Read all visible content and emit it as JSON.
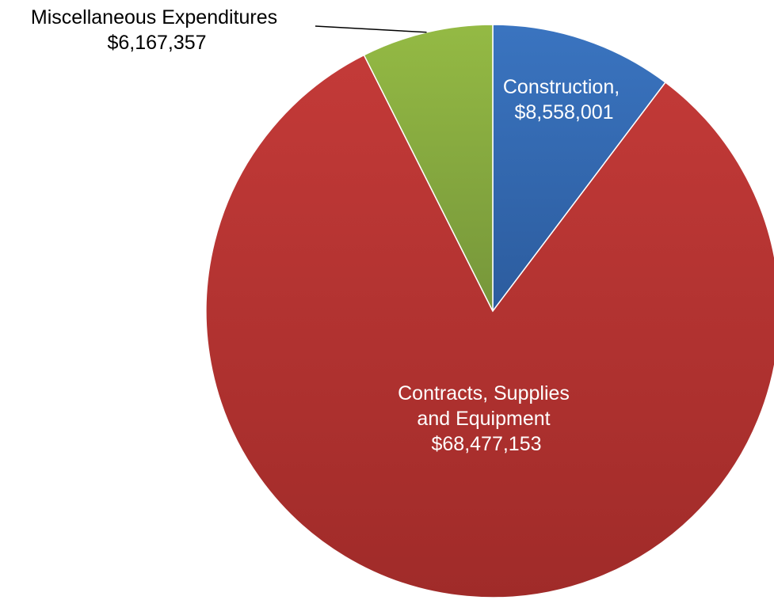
{
  "chart_data": {
    "type": "pie",
    "categories": [
      "Construction",
      "Contracts, Supplies and Equipment",
      "Miscellaneous Expenditures"
    ],
    "values": [
      8558001,
      68477153,
      6167357
    ],
    "labels": [
      [
        "Construction,",
        "$8,558,001"
      ],
      [
        "Contracts, Supplies",
        "and Equipment",
        "$68,477,153"
      ],
      [
        "Miscellaneous Expenditures",
        "$6,167,357"
      ]
    ],
    "colors": [
      "#3a74c0",
      "#c33a38",
      "#94ba44"
    ],
    "colors_dark": [
      "#2c5c9e",
      "#a02b29",
      "#76963a"
    ],
    "label_colors": [
      "#ffffff",
      "#ffffff",
      "#000000"
    ],
    "start_angle_deg": 0,
    "direction": "clockwise",
    "title": "",
    "legend": "none"
  }
}
